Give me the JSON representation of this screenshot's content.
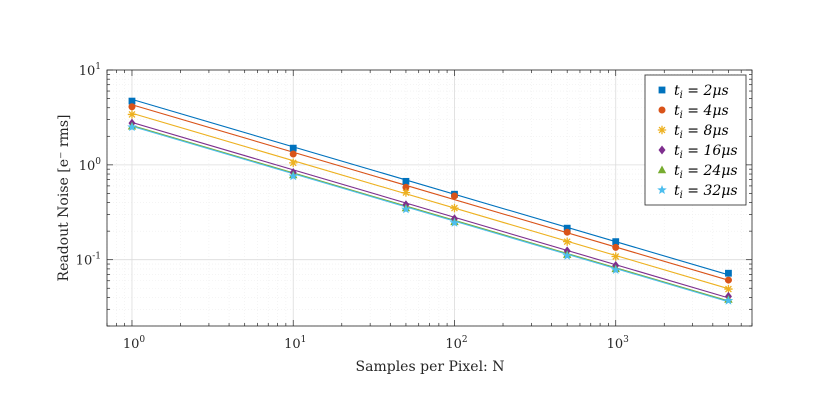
{
  "chart_data": {
    "type": "scatter",
    "xscale": "log",
    "yscale": "log",
    "xlabel": "Samples per Pixel: N",
    "ylabel": "Readout Noise [e⁻ rms]",
    "xlim": [
      0.7,
      7000
    ],
    "ylim": [
      0.02,
      10
    ],
    "x_ticks": [
      {
        "value": 1,
        "base": "10",
        "exp": "0"
      },
      {
        "value": 10,
        "base": "10",
        "exp": "1"
      },
      {
        "value": 100,
        "base": "10",
        "exp": "2"
      },
      {
        "value": 1000,
        "base": "10",
        "exp": "3"
      }
    ],
    "y_ticks": [
      {
        "value": 0.1,
        "base": "10",
        "exp": "-1"
      },
      {
        "value": 1,
        "base": "10",
        "exp": "0"
      },
      {
        "value": 10,
        "base": "10",
        "exp": "1"
      }
    ],
    "grid": true,
    "legend_position": "top-right",
    "x": [
      1,
      10,
      50,
      100,
      500,
      1000,
      5000
    ],
    "series": [
      {
        "name": "t_i = 2μs",
        "legend_sub": "i",
        "legend_rest": " = 2μs",
        "color": "#0072BD",
        "marker": "square",
        "values": [
          4.7,
          1.5,
          0.67,
          0.49,
          0.215,
          0.155,
          0.072
        ],
        "fit_start": 4.9
      },
      {
        "name": "t_i = 4μs",
        "legend_sub": "i",
        "legend_rest": " = 4μs",
        "color": "#D95319",
        "marker": "circle",
        "values": [
          4.1,
          1.3,
          0.58,
          0.47,
          0.195,
          0.135,
          0.061
        ],
        "fit_start": 4.3
      },
      {
        "name": "t_i = 8μs",
        "legend_sub": "i",
        "legend_rest": " = 8μs",
        "color": "#EDB120",
        "marker": "asterisk",
        "values": [
          3.4,
          1.05,
          0.51,
          0.35,
          0.155,
          0.108,
          0.049
        ],
        "fit_start": 3.5
      },
      {
        "name": "t_i = 16μs",
        "legend_sub": "i",
        "legend_rest": " = 16μs",
        "color": "#7E2F8E",
        "marker": "diamond",
        "values": [
          2.75,
          0.83,
          0.38,
          0.27,
          0.124,
          0.087,
          0.041
        ],
        "fit_start": 2.8
      },
      {
        "name": "t_i = 24μs",
        "legend_sub": "i",
        "legend_rest": " = 24μs",
        "color": "#77AC30",
        "marker": "triangle",
        "values": [
          2.55,
          0.78,
          0.35,
          0.25,
          0.113,
          0.08,
          0.038
        ],
        "fit_start": 2.6
      },
      {
        "name": "t_i = 32μs",
        "legend_sub": "i",
        "legend_rest": " = 32μs",
        "color": "#4DBEEE",
        "marker": "star",
        "values": [
          2.5,
          0.76,
          0.34,
          0.245,
          0.11,
          0.078,
          0.037
        ],
        "fit_start": 2.55
      }
    ]
  }
}
